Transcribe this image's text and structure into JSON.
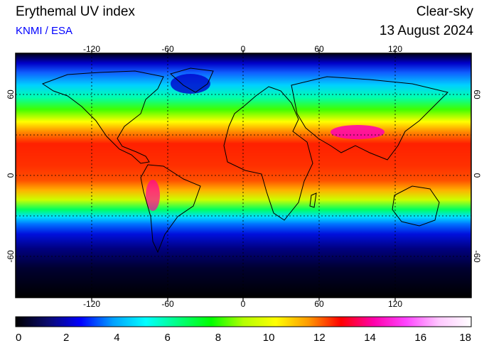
{
  "header": {
    "title": "Erythemal UV index",
    "credit": "KNMI / ESA",
    "product": "Clear-sky",
    "date": "13 August 2024"
  },
  "map": {
    "lon_ticks": [
      "-120",
      "-60",
      "0",
      "60",
      "120"
    ],
    "lat_ticks": [
      "60",
      "0",
      "-60"
    ],
    "projection": "equirectangular",
    "graticule": "dashed",
    "coastlines": true
  },
  "colorbar": {
    "tick_labels": [
      "0",
      "2",
      "4",
      "6",
      "8",
      "10",
      "12",
      "14",
      "16",
      "18"
    ],
    "min": 0,
    "max": 18,
    "colors": [
      "#000000",
      "#0a0a6e",
      "#0000ff",
      "#00a0ff",
      "#00ffff",
      "#00ff80",
      "#00ff00",
      "#b4ff00",
      "#ffff00",
      "#ff9900",
      "#ff0000",
      "#ff00aa",
      "#ff44ff",
      "#ffc8ff",
      "#ffffff"
    ]
  }
}
